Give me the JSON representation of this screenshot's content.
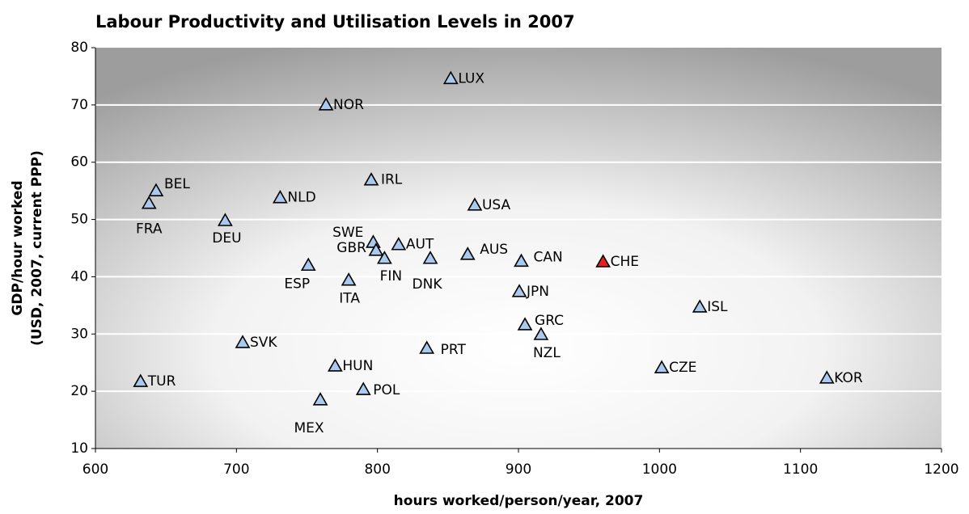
{
  "chart_data": {
    "type": "scatter",
    "title": "Labour Productivity and Utilisation Levels in 2007",
    "xlabel": "hours worked/person/year, 2007",
    "ylabel": [
      "GDP/hour worked",
      "(USD, 2007, current PPP)"
    ],
    "xlim": [
      600,
      1200
    ],
    "xticks": [
      600,
      700,
      800,
      900,
      1000,
      1100,
      1200
    ],
    "ylim": [
      10,
      80
    ],
    "yticks": [
      10,
      20,
      30,
      40,
      50,
      60,
      70,
      80
    ],
    "grid": true,
    "labels": [
      "LUX",
      "NOR",
      "BEL",
      "FRA",
      "NLD",
      "IRL",
      "USA",
      "DEU",
      "SWE",
      "AUT",
      "GBR",
      "FIN",
      "DNK",
      "AUS",
      "CAN",
      "CHE",
      "ESP",
      "ITA",
      "JPN",
      "ISL",
      "GRC",
      "NZL",
      "SVK",
      "PRT",
      "HUN",
      "CZE",
      "KOR",
      "TUR",
      "POL",
      "MEX"
    ],
    "x": [
      852,
      763.5,
      643,
      638,
      731,
      795.6,
      869,
      692,
      797,
      815,
      799,
      805,
      837.5,
      864,
      902,
      960,
      751,
      779.6,
      900.6,
      1028.6,
      904.6,
      916,
      704.4,
      835,
      770,
      1001.6,
      1118.7,
      632,
      790,
      759.5
    ],
    "y": [
      74.6,
      70,
      55,
      52.8,
      53.8,
      56.9,
      52.5,
      49.8,
      46,
      45.6,
      44.6,
      43.2,
      43.2,
      43.9,
      42.7,
      42.6,
      42,
      39.4,
      37.4,
      34.7,
      31.6,
      29.9,
      28.5,
      27.5,
      24.4,
      24.1,
      22.3,
      21.7,
      20.3,
      18.5
    ],
    "colors": [
      "#a9c9ee",
      "#a9c9ee",
      "#a9c9ee",
      "#a9c9ee",
      "#a9c9ee",
      "#a9c9ee",
      "#a9c9ee",
      "#a9c9ee",
      "#a9c9ee",
      "#a9c9ee",
      "#a9c9ee",
      "#a9c9ee",
      "#a9c9ee",
      "#a9c9ee",
      "#a9c9ee",
      "#e8201c",
      "#a9c9ee",
      "#a9c9ee",
      "#a9c9ee",
      "#a9c9ee",
      "#a9c9ee",
      "#a9c9ee",
      "#a9c9ee",
      "#a9c9ee",
      "#a9c9ee",
      "#a9c9ee",
      "#a9c9ee",
      "#a9c9ee",
      "#a9c9ee",
      "#a9c9ee"
    ]
  }
}
